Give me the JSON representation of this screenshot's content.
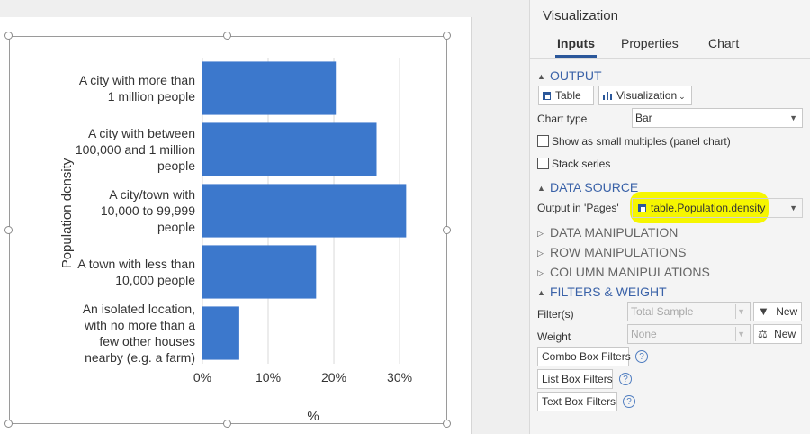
{
  "chart": {
    "y_axis_title": "Population density",
    "x_axis_title": "%",
    "colors": {
      "bar": "#3c78cc",
      "grid": "#d9d9d9"
    },
    "categories": [
      [
        "A city with more than",
        "1 million people"
      ],
      [
        "A city with between",
        "100,000 and 1 million",
        "people"
      ],
      [
        "A city/town with",
        "10,000 to 99,999",
        "people"
      ],
      [
        "A town with less than",
        "10,000 people"
      ],
      [
        "An isolated location,",
        "with no more than a",
        "few other houses",
        "nearby (e.g. a farm)"
      ]
    ],
    "x_ticks": [
      "0%",
      "10%",
      "20%",
      "30%"
    ]
  },
  "chart_data": {
    "type": "bar",
    "orientation": "horizontal",
    "categories": [
      "A city with more than 1 million people",
      "A city with between 100,000 and 1 million people",
      "A city/town with 10,000 to 99,999 people",
      "A town with less than 10,000 people",
      "An isolated location, with no more than a few other houses nearby (e.g. a farm)"
    ],
    "values": [
      20.3,
      26.5,
      31.0,
      17.3,
      5.6
    ],
    "xlabel": "%",
    "ylabel": "Population density",
    "xlim": [
      0,
      31.5
    ],
    "x_ticks": [
      0,
      10,
      20,
      30
    ],
    "grid": true
  },
  "panel": {
    "title": "Visualization",
    "tabs": [
      "Inputs",
      "Properties",
      "Chart"
    ],
    "output": {
      "header": "OUTPUT",
      "table_btn": "Table",
      "viz_btn": "Visualization",
      "chart_type_label": "Chart type",
      "chart_type_value": "Bar",
      "small_multiples": "Show as small multiples (panel chart)",
      "stack_series": "Stack series"
    },
    "data_source": {
      "header": "DATA SOURCE",
      "output_label": "Output in 'Pages'",
      "output_value": "table.Population.density",
      "highlight_color": "#f6f600"
    },
    "collapsed_sections": [
      "DATA MANIPULATION",
      "ROW MANIPULATIONS",
      "COLUMN MANIPULATIONS"
    ],
    "filters": {
      "header": "FILTERS & WEIGHT",
      "filters_label": "Filter(s)",
      "filters_value": "Total Sample",
      "weight_label": "Weight",
      "weight_value": "None",
      "new_label": "New",
      "new_label_2": "New",
      "combo_box": "Combo Box Filters",
      "list_box": "List Box Filters",
      "text_box": "Text Box Filters",
      "help": "?"
    },
    "accent_color": "#3a62a8"
  }
}
